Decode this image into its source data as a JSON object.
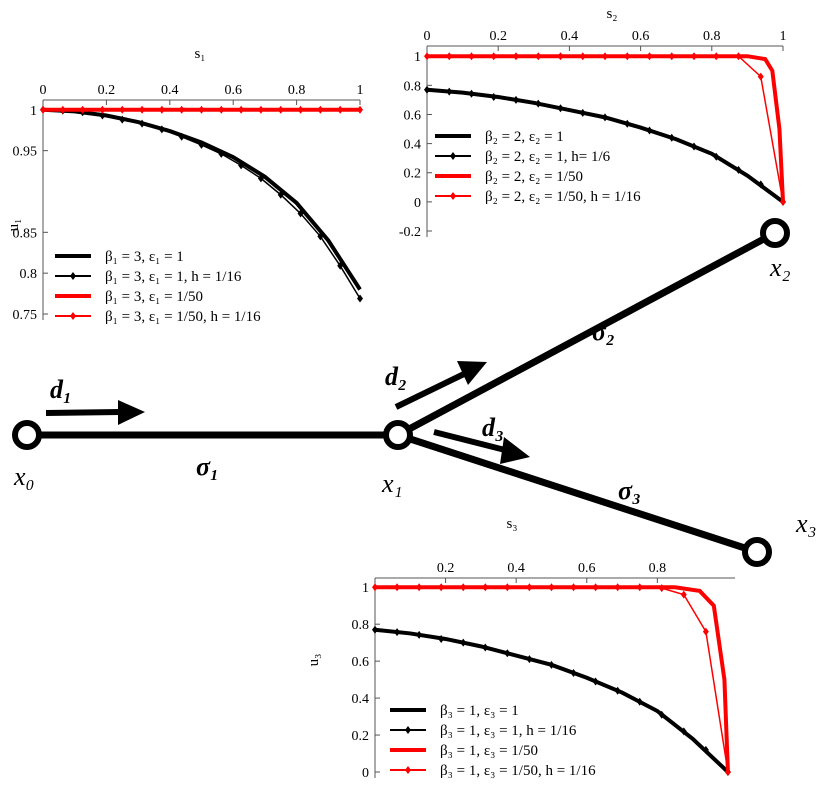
{
  "chart_data": [
    {
      "type": "line",
      "xlabel": "s₁",
      "ylabel": "u₁",
      "xlim": [
        0,
        1
      ],
      "ylim": [
        0.75,
        1.012
      ],
      "xticks": [
        0,
        0.2,
        0.4,
        0.6,
        0.8,
        1
      ],
      "yticks": [
        0.75,
        0.8,
        0.85,
        0.95,
        1
      ],
      "series": [
        {
          "name": "β₁ = 3, ε₁ = 1",
          "color": "#000000",
          "marker": false,
          "x": [
            0,
            0.1,
            0.2,
            0.3,
            0.4,
            0.5,
            0.6,
            0.7,
            0.8,
            0.9,
            1
          ],
          "values": [
            1,
            0.998,
            0.993,
            0.985,
            0.974,
            0.96,
            0.942,
            0.918,
            0.886,
            0.84,
            0.78
          ]
        },
        {
          "name": "β₁ = 3, ε₁ = 1, h = 1/16",
          "color": "#000000",
          "marker": true,
          "x": [
            0,
            0.0625,
            0.125,
            0.1875,
            0.25,
            0.3125,
            0.375,
            0.4375,
            0.5,
            0.5625,
            0.625,
            0.6875,
            0.75,
            0.8125,
            0.875,
            0.9375,
            1
          ],
          "values": [
            1,
            0.999,
            0.997,
            0.993,
            0.988,
            0.983,
            0.976,
            0.967,
            0.957,
            0.946,
            0.932,
            0.916,
            0.896,
            0.873,
            0.845,
            0.809,
            0.769
          ]
        },
        {
          "name": "β₁ = 3, ε₁ = 1/50",
          "color": "#ff0000",
          "marker": false,
          "x": [
            0,
            1
          ],
          "values": [
            1,
            1
          ]
        },
        {
          "name": "β₁ = 3, ε₁ = 1/50, h = 1/16",
          "color": "#ff0000",
          "marker": true,
          "x": [
            0,
            0.0625,
            0.125,
            0.1875,
            0.25,
            0.3125,
            0.375,
            0.4375,
            0.5,
            0.5625,
            0.625,
            0.6875,
            0.75,
            0.8125,
            0.875,
            0.9375,
            1
          ],
          "values": [
            1,
            1,
            1,
            1,
            1,
            1,
            1,
            1,
            1,
            1,
            1,
            1,
            1,
            1,
            1,
            1,
            1
          ]
        }
      ]
    },
    {
      "type": "line",
      "xlabel": "s₂",
      "xlim": [
        0,
        1
      ],
      "ylim": [
        -0.2,
        1.07
      ],
      "xticks": [
        0,
        0.2,
        0.4,
        0.6,
        0.8,
        1
      ],
      "yticks": [
        -0.2,
        0,
        0.2,
        0.4,
        0.6,
        0.8,
        1
      ],
      "series": [
        {
          "name": "β₂ = 2, ε₂ = 1",
          "color": "#000000",
          "marker": false,
          "x": [
            0,
            0.1,
            0.2,
            0.3,
            0.4,
            0.5,
            0.6,
            0.7,
            0.8,
            0.9,
            1
          ],
          "values": [
            0.77,
            0.75,
            0.72,
            0.68,
            0.63,
            0.58,
            0.51,
            0.43,
            0.33,
            0.18,
            0
          ]
        },
        {
          "name": "β₂ = 2, ε₂ = 1, h= 1/6",
          "color": "#000000",
          "marker": true,
          "x": [
            0,
            0.0625,
            0.125,
            0.1875,
            0.25,
            0.3125,
            0.375,
            0.4375,
            0.5,
            0.5625,
            0.625,
            0.6875,
            0.75,
            0.8125,
            0.875,
            0.9375,
            1
          ],
          "values": [
            0.77,
            0.757,
            0.742,
            0.72,
            0.7,
            0.674,
            0.643,
            0.611,
            0.58,
            0.536,
            0.49,
            0.44,
            0.38,
            0.31,
            0.22,
            0.12,
            0
          ]
        },
        {
          "name": "β₂ = 2, ε₂ = 1/50",
          "color": "#ff0000",
          "marker": false,
          "x": [
            0,
            0.9,
            0.95,
            0.97,
            0.99,
            1
          ],
          "values": [
            1,
            1,
            0.98,
            0.9,
            0.5,
            0
          ]
        },
        {
          "name": "β₂ = 2, ε₂ = 1/50, h = 1/16",
          "color": "#ff0000",
          "marker": true,
          "x": [
            0,
            0.0625,
            0.125,
            0.1875,
            0.25,
            0.3125,
            0.375,
            0.4375,
            0.5,
            0.5625,
            0.625,
            0.6875,
            0.75,
            0.8125,
            0.875,
            0.9375,
            1
          ],
          "values": [
            1,
            1,
            1,
            1,
            1,
            1,
            1,
            1,
            1,
            1,
            1,
            1,
            1,
            1,
            1,
            0.86,
            0
          ]
        }
      ]
    },
    {
      "type": "line",
      "xlabel": "s₃",
      "ylabel": "u₃",
      "xlim": [
        0,
        1.02
      ],
      "ylim": [
        0,
        1.05
      ],
      "xticks": [
        0.2,
        0.4,
        0.6,
        0.8
      ],
      "yticks": [
        0,
        0.2,
        0.4,
        0.6,
        0.8,
        1
      ],
      "series": [
        {
          "name": "β₃ = 1, ε₃ = 1",
          "color": "#000000",
          "marker": false,
          "x": [
            0,
            0.1,
            0.2,
            0.3,
            0.4,
            0.5,
            0.6,
            0.7,
            0.8,
            0.9,
            1
          ],
          "values": [
            0.77,
            0.75,
            0.72,
            0.68,
            0.63,
            0.58,
            0.51,
            0.43,
            0.33,
            0.18,
            0
          ]
        },
        {
          "name": "β₃ = 1, ε₃ = 1, h = 1/16",
          "color": "#000000",
          "marker": true,
          "x": [
            0,
            0.0625,
            0.125,
            0.1875,
            0.25,
            0.3125,
            0.375,
            0.4375,
            0.5,
            0.5625,
            0.625,
            0.6875,
            0.75,
            0.8125,
            0.875,
            0.9375,
            1
          ],
          "values": [
            0.77,
            0.757,
            0.742,
            0.72,
            0.7,
            0.674,
            0.643,
            0.611,
            0.58,
            0.536,
            0.49,
            0.44,
            0.38,
            0.31,
            0.22,
            0.12,
            0
          ]
        },
        {
          "name": "β₃ = 1, ε₃ = 1/50",
          "color": "#ff0000",
          "marker": false,
          "x": [
            0,
            0.85,
            0.92,
            0.96,
            0.99,
            1
          ],
          "values": [
            1,
            1,
            0.98,
            0.9,
            0.5,
            0
          ]
        },
        {
          "name": "β₃ = 1, ε₃ = 1/50, h = 1/16",
          "color": "#ff0000",
          "marker": true,
          "x": [
            0,
            0.0625,
            0.125,
            0.1875,
            0.25,
            0.3125,
            0.375,
            0.4375,
            0.5,
            0.5625,
            0.625,
            0.6875,
            0.75,
            0.8125,
            0.875,
            0.9375,
            1
          ],
          "values": [
            1,
            1,
            1,
            1,
            1,
            1,
            1,
            1,
            1,
            1,
            1,
            1,
            1,
            0.995,
            0.96,
            0.76,
            0
          ]
        }
      ]
    }
  ],
  "diagram": {
    "nodes": [
      "x₀",
      "x₁",
      "x₂",
      "x₃"
    ],
    "edges": [
      "σ₁",
      "σ₂",
      "σ₃"
    ],
    "directions": [
      "d₁",
      "d₂",
      "d₃"
    ]
  }
}
